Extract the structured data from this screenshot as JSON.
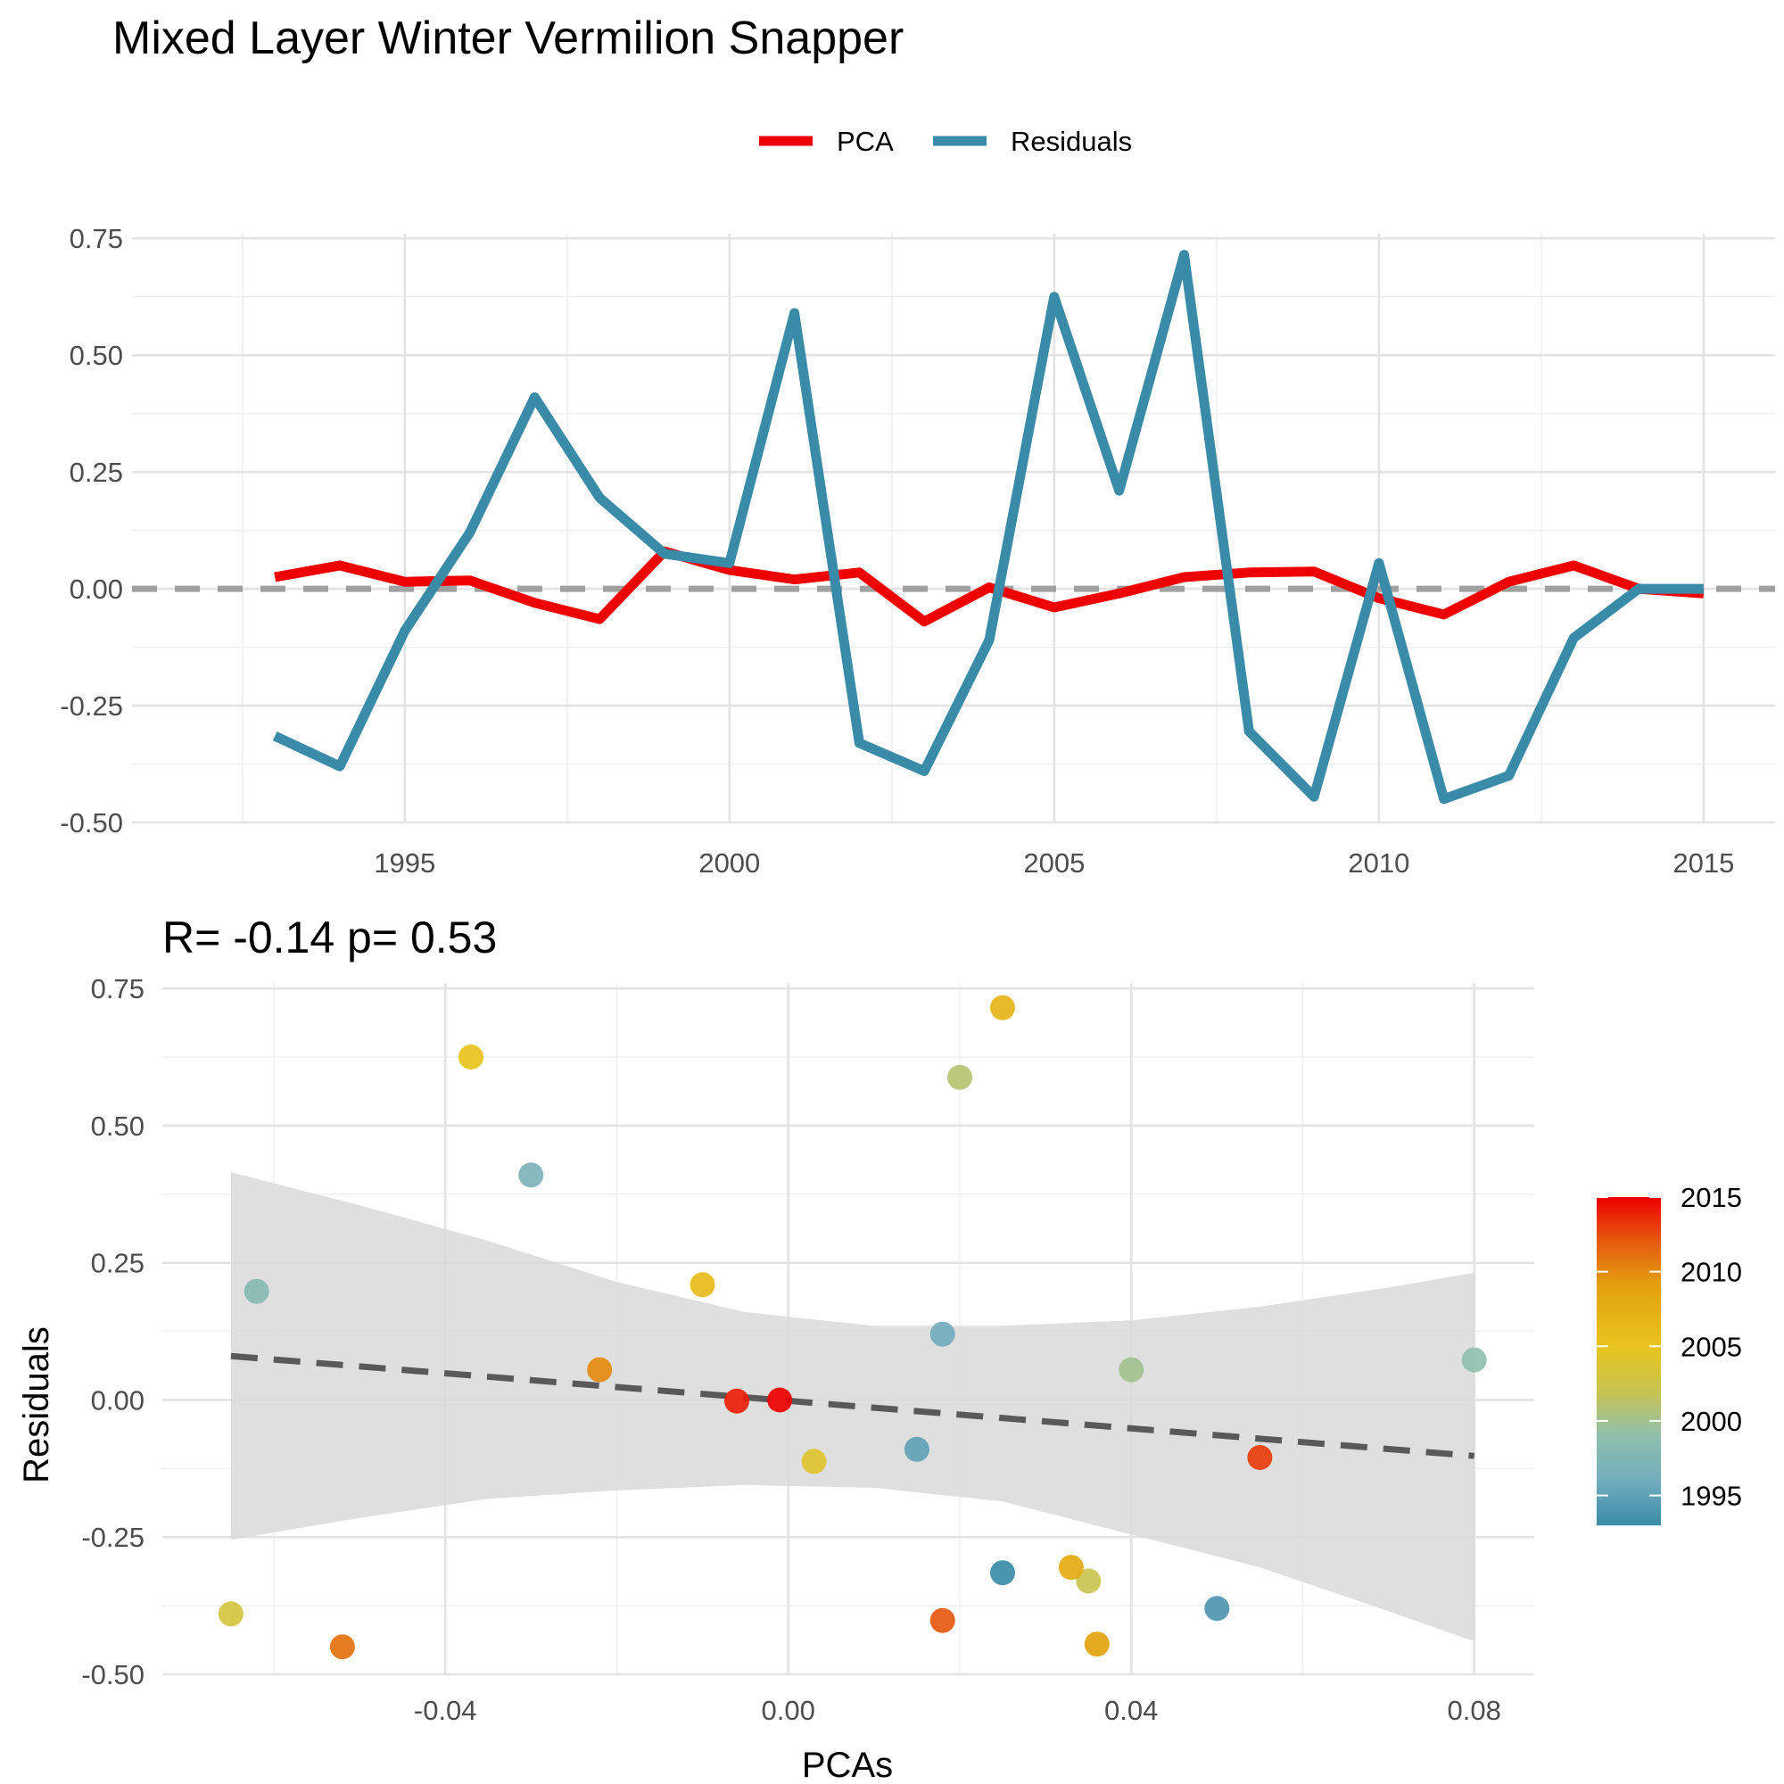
{
  "title": "Mixed Layer Winter Vermilion Snapper",
  "chart_data": [
    {
      "type": "line",
      "legend": {
        "position": "top",
        "entries": [
          "PCA",
          "Residuals"
        ]
      },
      "x": [
        1993,
        1994,
        1995,
        1996,
        1997,
        1998,
        1999,
        2000,
        2001,
        2002,
        2003,
        2004,
        2005,
        2006,
        2007,
        2008,
        2009,
        2010,
        2011,
        2012,
        2013,
        2014,
        2015
      ],
      "series": [
        {
          "name": "PCA",
          "color": "#ee0000",
          "values": [
            0.025,
            0.05,
            0.015,
            0.018,
            -0.03,
            -0.065,
            0.08,
            0.04,
            0.02,
            0.035,
            -0.07,
            0.003,
            -0.04,
            -0.01,
            0.025,
            0.035,
            0.037,
            -0.02,
            -0.055,
            0.015,
            0.05,
            0.0,
            -0.01
          ]
        },
        {
          "name": "Residuals",
          "color": "#3a8ba8",
          "values": [
            -0.315,
            -0.38,
            -0.09,
            0.12,
            0.41,
            0.195,
            0.075,
            0.055,
            0.59,
            -0.33,
            -0.39,
            -0.11,
            0.625,
            0.21,
            0.715,
            -0.305,
            -0.445,
            0.055,
            -0.45,
            -0.4,
            -0.105,
            0.0,
            0.0
          ]
        }
      ],
      "reference_line": {
        "y": 0,
        "style": "dashed",
        "color": "#a0a0a0"
      },
      "xticks": [
        "1995",
        "2000",
        "2005",
        "2010",
        "2015"
      ],
      "xtick_values": [
        1995,
        2000,
        2005,
        2010,
        2015
      ],
      "yticks": [
        "-0.50",
        "-0.25",
        "0.00",
        "0.25",
        "0.50",
        "0.75"
      ],
      "ytick_values": [
        -0.5,
        -0.25,
        0,
        0.25,
        0.5,
        0.75
      ],
      "xlim": [
        1990.8,
        2016.1
      ],
      "ylim": [
        -0.5,
        0.76
      ],
      "grid": true
    },
    {
      "type": "scatter",
      "title": "R= -0.14  p= 0.53",
      "xlabel": "PCAs",
      "ylabel": "Residuals",
      "xticks": [
        "-0.04",
        "0.00",
        "0.04",
        "0.08"
      ],
      "xtick_values": [
        -0.04,
        0.0,
        0.04,
        0.08
      ],
      "yticks": [
        "-0.50",
        "-0.25",
        "0.00",
        "0.25",
        "0.50",
        "0.75"
      ],
      "ytick_values": [
        -0.5,
        -0.25,
        0,
        0.25,
        0.5,
        0.75
      ],
      "xlim": [
        -0.073,
        0.087
      ],
      "ylim": [
        -0.5,
        0.76
      ],
      "grid": true,
      "points": [
        {
          "x": 0.025,
          "y": -0.315,
          "year": 1993
        },
        {
          "x": 0.05,
          "y": -0.38,
          "year": 1994
        },
        {
          "x": 0.015,
          "y": -0.09,
          "year": 1995
        },
        {
          "x": 0.018,
          "y": 0.12,
          "year": 1996
        },
        {
          "x": -0.03,
          "y": 0.41,
          "year": 1997
        },
        {
          "x": -0.062,
          "y": 0.198,
          "year": 1998
        },
        {
          "x": 0.08,
          "y": 0.073,
          "year": 1999
        },
        {
          "x": 0.04,
          "y": 0.055,
          "year": 2000
        },
        {
          "x": 0.02,
          "y": 0.588,
          "year": 2001
        },
        {
          "x": 0.035,
          "y": -0.33,
          "year": 2002
        },
        {
          "x": -0.065,
          "y": -0.39,
          "year": 2003
        },
        {
          "x": 0.003,
          "y": -0.112,
          "year": 2004
        },
        {
          "x": -0.037,
          "y": 0.625,
          "year": 2005
        },
        {
          "x": -0.01,
          "y": 0.21,
          "year": 2006
        },
        {
          "x": 0.025,
          "y": 0.715,
          "year": 2007
        },
        {
          "x": 0.033,
          "y": -0.305,
          "year": 2008
        },
        {
          "x": 0.036,
          "y": -0.445,
          "year": 2009
        },
        {
          "x": -0.022,
          "y": 0.055,
          "year": 2010
        },
        {
          "x": -0.052,
          "y": -0.45,
          "year": 2011
        },
        {
          "x": 0.018,
          "y": -0.402,
          "year": 2012
        },
        {
          "x": 0.055,
          "y": -0.105,
          "year": 2013
        },
        {
          "x": -0.006,
          "y": -0.002,
          "year": 2014
        },
        {
          "x": -0.001,
          "y": 0.0,
          "year": 2015
        }
      ],
      "fit_line": {
        "style": "dashed",
        "color": "#595959",
        "x": [
          -0.065,
          0.08
        ],
        "y": [
          0.08,
          -0.102
        ]
      },
      "confidence_band": {
        "color": "#d9d9d9",
        "x": [
          -0.065,
          -0.05,
          -0.035,
          -0.02,
          -0.005,
          0.01,
          0.025,
          0.04,
          0.055,
          0.07,
          0.08
        ],
        "upper": [
          0.415,
          0.355,
          0.29,
          0.215,
          0.16,
          0.135,
          0.135,
          0.145,
          0.17,
          0.205,
          0.232
        ],
        "lower": [
          -0.255,
          -0.215,
          -0.18,
          -0.165,
          -0.155,
          -0.16,
          -0.185,
          -0.245,
          -0.305,
          -0.385,
          -0.44
        ]
      },
      "colorbar": {
        "labels": [
          "2015",
          "2010",
          "2005",
          "2000",
          "1995"
        ],
        "values": [
          2015,
          2010,
          2005,
          2000,
          1995
        ],
        "range": [
          1993,
          2015
        ],
        "stops": [
          {
            "value": 1993,
            "color": "#3a8ba8"
          },
          {
            "value": 1996,
            "color": "#72adbd"
          },
          {
            "value": 1999,
            "color": "#8fc0ad"
          },
          {
            "value": 2002,
            "color": "#c9c451"
          },
          {
            "value": 2005,
            "color": "#e8c31c"
          },
          {
            "value": 2009,
            "color": "#e3a20f"
          },
          {
            "value": 2012,
            "color": "#e55a0f"
          },
          {
            "value": 2015,
            "color": "#ee0000"
          }
        ]
      }
    }
  ]
}
